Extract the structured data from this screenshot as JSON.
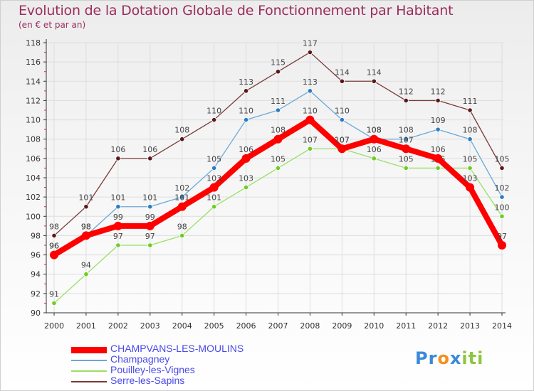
{
  "title": "Evolution de la Dotation Globale de Fonctionnement par Habitant",
  "subtitle": "(en € et par an)",
  "logo": {
    "p": "P",
    "r": "r",
    "o": "o",
    "x": "x",
    "i1": "i",
    "t": "t",
    "i2": "i"
  },
  "colors": {
    "champvans": "#ff0000",
    "champvans_marker": "#cc0000",
    "champagney": "#6aa8d8",
    "champagney_marker": "#2b7cc4",
    "pouilley": "#99e066",
    "pouilley_marker": "#6ecc22",
    "serre": "#7a3a3a",
    "serre_marker": "#5a1818",
    "axis_text": "#333333",
    "label_text": "#444444"
  },
  "chart_data": {
    "type": "line",
    "title": "Evolution de la Dotation Globale de Fonctionnement par Habitant",
    "subtitle": "(en € et par an)",
    "xlabel": "",
    "ylabel": "",
    "x": [
      2000,
      2001,
      2002,
      2003,
      2004,
      2005,
      2006,
      2007,
      2008,
      2009,
      2010,
      2011,
      2012,
      2013,
      2014
    ],
    "ylim": [
      90,
      118
    ],
    "yticks": [
      90,
      92,
      94,
      96,
      98,
      100,
      102,
      104,
      106,
      108,
      110,
      112,
      114,
      116,
      118
    ],
    "grid": true,
    "legend_position": "bottom-left",
    "series": [
      {
        "key": "serre",
        "name": "Serre-les-Sapins",
        "values": [
          98,
          101,
          106,
          106,
          108,
          110,
          113,
          115,
          117,
          114,
          114,
          112,
          112,
          111,
          105
        ]
      },
      {
        "key": "champagney",
        "name": "Champagney",
        "values": [
          96,
          98,
          101,
          101,
          102,
          105,
          110,
          111,
          113,
          110,
          108,
          108,
          109,
          108,
          102
        ]
      },
      {
        "key": "pouilley",
        "name": "Pouilley-les-Vignes",
        "values": [
          91,
          94,
          97,
          97,
          98,
          101,
          103,
          105,
          107,
          107,
          106,
          105,
          105,
          105,
          100
        ]
      },
      {
        "key": "champvans",
        "name": "CHAMPVANS-LES-MOULINS",
        "values": [
          96,
          98,
          99,
          99,
          101,
          103,
          106,
          108,
          110,
          107,
          108,
          107,
          106,
          103,
          97
        ]
      }
    ],
    "legend_order": [
      "champvans",
      "champagney",
      "pouilley",
      "serre"
    ]
  }
}
